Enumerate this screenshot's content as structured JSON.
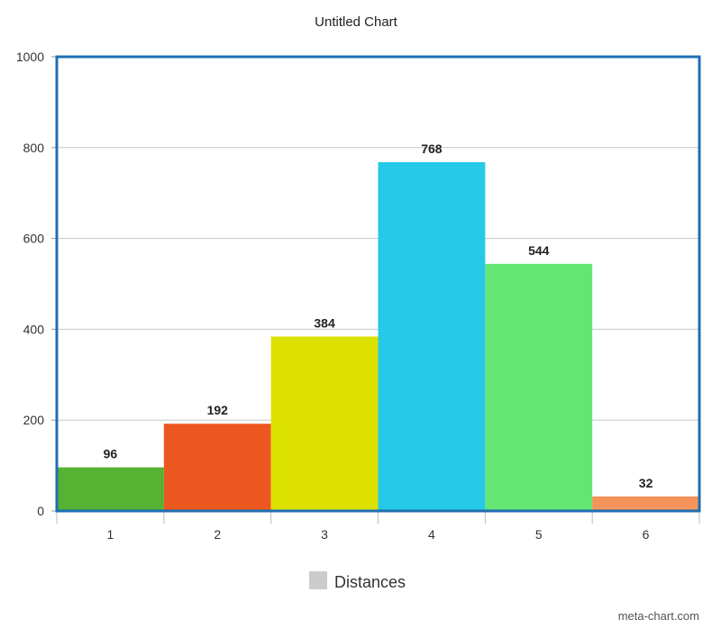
{
  "chart_data": {
    "type": "bar",
    "title": "Untitled Chart",
    "categories": [
      "1",
      "2",
      "3",
      "4",
      "5",
      "6"
    ],
    "series": [
      {
        "name": "Distances",
        "values": [
          96,
          192,
          384,
          768,
          544,
          32
        ]
      }
    ],
    "bar_colors": [
      "#55b233",
      "#eb571e",
      "#dde100",
      "#26c9e8",
      "#64e674",
      "#f4945a"
    ],
    "y_ticks": [
      "0",
      "200",
      "400",
      "600",
      "800",
      "1000"
    ],
    "ylim": [
      0,
      1000
    ],
    "grid": true,
    "legend_position": "bottom-center",
    "legend_swatch_color": "#cccccc",
    "frame_color": "#1f6fb2",
    "grid_color": "#c8c8c8"
  },
  "watermark": "meta-chart.com"
}
